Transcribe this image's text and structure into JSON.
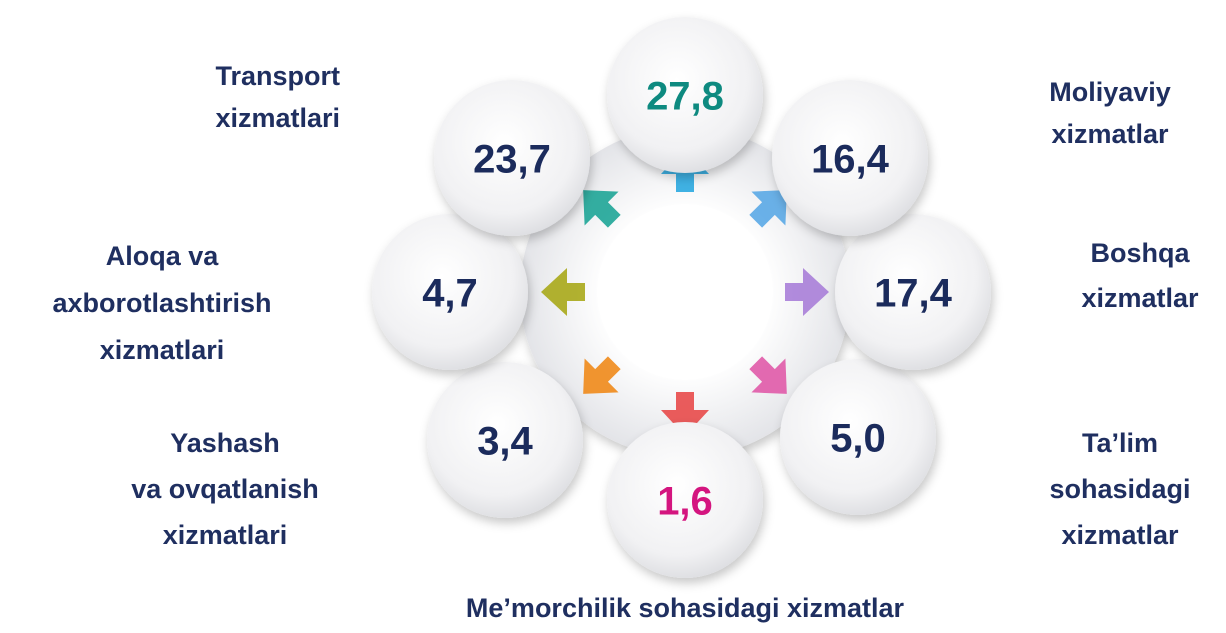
{
  "items": [
    {
      "value": "27,8",
      "label": []
    },
    {
      "value": "16,4",
      "label": [
        "Moliyaviy",
        "xizmatlar"
      ]
    },
    {
      "value": "17,4",
      "label": [
        "Boshqa",
        "xizmatlar"
      ]
    },
    {
      "value": "5,0",
      "label": [
        "Ta’lim",
        "sohasidagi",
        "xizmatlar"
      ]
    },
    {
      "value": "1,6",
      "label": [
        "Me’morchilik sohasidagi xizmatlar"
      ]
    },
    {
      "value": "3,4",
      "label": [
        "Yashash",
        "va ovqatlanish",
        "xizmatlari"
      ]
    },
    {
      "value": "4,7",
      "label": [
        "Aloqa va",
        "axborotlashtirish",
        "xizmatlari"
      ]
    },
    {
      "value": "23,7",
      "label": [
        "Transport",
        "xizmatlari"
      ]
    }
  ]
}
